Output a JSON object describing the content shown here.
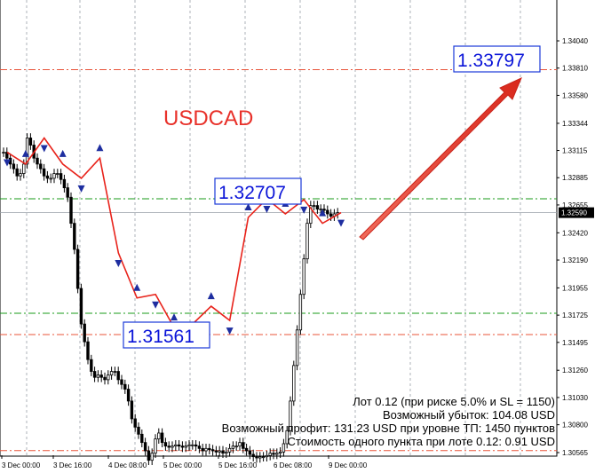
{
  "chart_data": {
    "type": "candlestick",
    "symbol": "USDCAD",
    "ylim": [
      1.30565,
      1.3416
    ],
    "y_ticks": [
      "1.34040",
      "1.33810",
      "1.33580",
      "1.33344",
      "1.33115",
      "1.32885",
      "1.32655",
      "1.32590",
      "1.32420",
      "1.32190",
      "1.31955",
      "1.31725",
      "1.31495",
      "1.31260",
      "1.31030",
      "1.30800",
      "1.30565"
    ],
    "current_price": "1.32590",
    "x_ticks": [
      "3 Dec 00:00",
      "3 Dec 16:00",
      "4 Dec 08:00",
      "5 Dec 00:00",
      "5 Dec 16:00",
      "6 Dec 08:00",
      "9 Dec 00:00"
    ],
    "levels": [
      {
        "value": 1.33797,
        "label": "1.33797",
        "style": "dash-dot",
        "color": "#e8543a"
      },
      {
        "value": 1.32707,
        "label": "1.32707",
        "style": "dash-dot",
        "color": "#1a9b1a"
      },
      {
        "value": 1.31741,
        "style": "dash-dot",
        "color": "#1a9b1a"
      },
      {
        "value": 1.31561,
        "label": "1.31561",
        "style": "dash-dot",
        "color": "#e8543a"
      },
      {
        "value": 1.30582,
        "style": "dash-dot",
        "color": "#e8543a"
      }
    ],
    "close_series": [
      1.331,
      1.3305,
      1.33,
      1.3296,
      1.329,
      1.3292,
      1.33,
      1.3322,
      1.3316,
      1.3305,
      1.33,
      1.3296,
      1.329,
      1.3288,
      1.3288,
      1.3292,
      1.3292,
      1.3287,
      1.328,
      1.3272,
      1.325,
      1.3228,
      1.3195,
      1.3165,
      1.315,
      1.3135,
      1.3125,
      1.312,
      1.3122,
      1.312,
      1.3118,
      1.3122,
      1.3125,
      1.3125,
      1.3118,
      1.3114,
      1.311,
      1.31,
      1.3085,
      1.3078,
      1.3072,
      1.3065,
      1.3058,
      1.305,
      1.3056,
      1.3068,
      1.3073,
      1.3065,
      1.3062,
      1.3061,
      1.3062,
      1.3063,
      1.3062,
      1.3061,
      1.3062,
      1.3063,
      1.3063,
      1.3062,
      1.306,
      1.3058,
      1.306,
      1.3059,
      1.3058,
      1.3057,
      1.3058,
      1.3056,
      1.3057,
      1.306,
      1.3062,
      1.3062,
      1.3065,
      1.306,
      1.3058,
      1.3055,
      1.3053,
      1.3052,
      1.3053,
      1.3053,
      1.3054,
      1.3056,
      1.3055,
      1.3056,
      1.3057,
      1.3064,
      1.3075,
      1.31,
      1.313,
      1.316,
      1.319,
      1.322,
      1.325,
      1.3265,
      1.3265,
      1.3262,
      1.3262,
      1.3261,
      1.3258,
      1.3256,
      1.3258,
      1.3259
    ],
    "zigzag": [
      1.331,
      1.33,
      1.3322,
      1.33,
      1.3288,
      1.3305,
      1.3225,
      1.3187,
      1.319,
      1.3162,
      1.3165,
      1.318,
      1.3168,
      1.3255,
      1.32707,
      1.3258,
      1.327,
      1.325,
      1.3259
    ],
    "trend_arrow": {
      "from": 1.3287,
      "to": 1.336
    }
  },
  "symbol_label": "USDCAD",
  "target_label": "1.33797",
  "resistance_label": "1.32707",
  "support_label": "1.31561",
  "info": {
    "line1": "Лот 0.12 (при риске 5.0% и SL = 1150)",
    "line2": "Возможный убыток: 104.08 USD",
    "line3": "Возможный профит: 131.23 USD при уровне ТП: 1450 пунктов",
    "line4": "Стоимость одного пункта при лоте 0.12: 0.91 USD"
  },
  "colors": {
    "bull_candle": "#000000",
    "bear_candle": "#000000",
    "zigzag": "#e8221a",
    "arrow": "#e8312a",
    "fractal": "#1e2ea0",
    "label_border": "#1a3ad8",
    "current_price_bg": "#000000"
  }
}
